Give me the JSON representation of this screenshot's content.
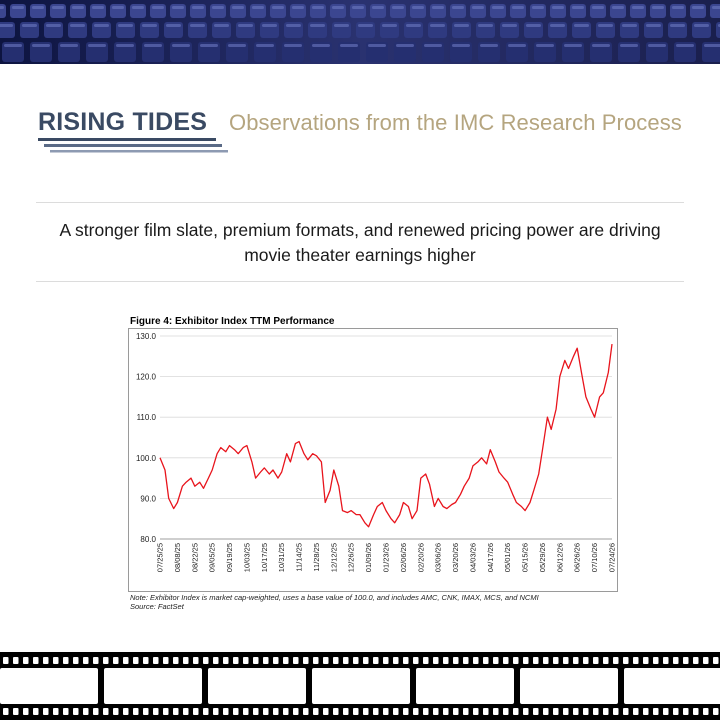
{
  "header": {
    "brand": "RISING TIDES",
    "subtitle": "Observations from the IMC Research Process"
  },
  "headline": "A stronger film slate, premium formats, and renewed pricing power are driving movie theater earnings higher",
  "figure": {
    "note_line1": "Note: Exhibitor Index is market cap-weighted, uses a base value of 100.0, and includes AMC, CNK, IMAX, MCS, and NCMI",
    "note_line2": "Source: FactSet"
  },
  "colors": {
    "brand": "#3a4a63",
    "subtitle": "#b5a57f",
    "series": "#e8141c",
    "banner": "#1a2350"
  },
  "chart_data": {
    "type": "line",
    "title": "Figure 4: Exhibitor Index TTM Performance",
    "ylim": [
      80,
      130
    ],
    "yticks": [
      "80.0",
      "90.0",
      "100.0",
      "110.0",
      "120.0",
      "130.0"
    ],
    "xticks": [
      "07/25/25",
      "08/08/25",
      "08/22/25",
      "09/05/25",
      "09/19/25",
      "10/03/25",
      "10/17/25",
      "10/31/25",
      "11/14/25",
      "11/28/25",
      "12/12/25",
      "12/26/25",
      "01/09/26",
      "01/23/26",
      "02/06/26",
      "02/20/26",
      "03/06/26",
      "03/20/26",
      "04/03/26",
      "04/17/26",
      "05/01/26",
      "05/15/26",
      "05/29/26",
      "06/12/26",
      "06/26/26",
      "07/10/26",
      "07/24/26"
    ],
    "grid": true,
    "series": [
      {
        "x": [
          "07/25/25",
          "07/29/25",
          "08/01/25",
          "08/05/25",
          "08/08/25",
          "08/12/25",
          "08/15/25",
          "08/19/25",
          "08/22/25",
          "08/26/25",
          "08/29/25",
          "09/02/25",
          "09/05/25",
          "09/09/25",
          "09/12/25",
          "09/16/25",
          "09/19/25",
          "09/23/25",
          "09/26/25",
          "09/30/25",
          "10/03/25",
          "10/07/25",
          "10/10/25",
          "10/14/25",
          "10/17/25",
          "10/21/25",
          "10/24/25",
          "10/28/25",
          "10/31/25",
          "11/04/25",
          "11/07/25",
          "11/11/25",
          "11/14/25",
          "11/18/25",
          "11/21/25",
          "11/25/25",
          "11/28/25",
          "12/02/25",
          "12/05/25",
          "12/09/25",
          "12/12/25",
          "12/16/25",
          "12/19/25",
          "12/23/25",
          "12/26/25",
          "12/30/25",
          "01/02/26",
          "01/06/26",
          "01/09/26",
          "01/13/26",
          "01/16/26",
          "01/20/26",
          "01/23/26",
          "01/27/26",
          "01/30/26",
          "02/03/26",
          "02/06/26",
          "02/10/26",
          "02/13/26",
          "02/17/26",
          "02/20/26",
          "02/24/26",
          "02/27/26",
          "03/03/26",
          "03/06/26",
          "03/10/26",
          "03/13/26",
          "03/17/26",
          "03/20/26",
          "03/24/26",
          "03/27/26",
          "03/31/26",
          "04/03/26",
          "04/07/26",
          "04/10/26",
          "04/14/26",
          "04/17/26",
          "04/21/26",
          "04/24/26",
          "04/28/26",
          "05/01/26",
          "05/05/26",
          "05/08/26",
          "05/12/26",
          "05/15/26",
          "05/19/26",
          "05/22/26",
          "05/26/26",
          "05/29/26",
          "06/02/26",
          "06/05/26",
          "06/09/26",
          "06/12/26",
          "06/16/26",
          "06/19/26",
          "06/23/26",
          "06/26/26",
          "06/30/26",
          "07/03/26",
          "07/07/26",
          "07/10/26",
          "07/14/26",
          "07/17/26",
          "07/21/26",
          "07/24/26"
        ],
        "values": [
          100.0,
          97.0,
          90.0,
          87.5,
          89.0,
          93.0,
          94.0,
          95.0,
          93.0,
          94.0,
          92.5,
          95.0,
          97.0,
          101.0,
          102.5,
          101.5,
          103.0,
          102.0,
          101.0,
          102.5,
          103.0,
          99.0,
          95.0,
          96.5,
          97.5,
          96.0,
          97.0,
          95.0,
          96.5,
          101.0,
          99.0,
          103.5,
          104.0,
          101.0,
          99.5,
          101.0,
          100.5,
          99.0,
          89.0,
          92.0,
          97.0,
          93.0,
          87.0,
          86.5,
          87.0,
          86.0,
          86.0,
          84.0,
          83.0,
          86.0,
          88.0,
          89.0,
          87.0,
          85.0,
          84.0,
          86.0,
          89.0,
          88.0,
          85.0,
          87.0,
          95.0,
          96.0,
          93.5,
          88.0,
          90.0,
          88.0,
          87.5,
          88.5,
          89.0,
          91.0,
          93.0,
          95.0,
          98.0,
          99.0,
          100.0,
          98.5,
          102.0,
          99.0,
          96.5,
          95.0,
          94.0,
          91.0,
          89.0,
          88.0,
          87.0,
          89.0,
          92.0,
          96.0,
          102.0,
          110.0,
          107.0,
          112.0,
          120.0,
          124.0,
          122.0,
          125.0,
          127.0,
          120.0,
          115.0,
          112.0,
          110.0,
          115.0,
          116.0,
          121.0,
          128.0
        ]
      }
    ]
  }
}
